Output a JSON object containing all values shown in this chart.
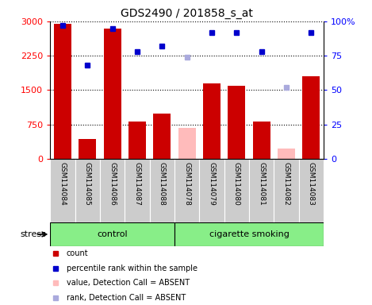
{
  "title": "GDS2490 / 201858_s_at",
  "samples": [
    "GSM114084",
    "GSM114085",
    "GSM114086",
    "GSM114087",
    "GSM114088",
    "GSM114078",
    "GSM114079",
    "GSM114080",
    "GSM114081",
    "GSM114082",
    "GSM114083"
  ],
  "bar_values": [
    2950,
    430,
    2850,
    820,
    980,
    null,
    1650,
    1600,
    820,
    null,
    1800
  ],
  "bar_absent_values": [
    null,
    null,
    null,
    null,
    null,
    680,
    null,
    null,
    null,
    220,
    null
  ],
  "rank_present": [
    97,
    68,
    95,
    78,
    82,
    null,
    92,
    92,
    78,
    null,
    92
  ],
  "rank_absent": [
    null,
    null,
    null,
    null,
    null,
    74,
    null,
    null,
    null,
    52,
    null
  ],
  "bar_color_present": "#cc0000",
  "bar_color_absent": "#ffbbbb",
  "rank_color_present": "#0000cc",
  "rank_color_absent": "#aaaadd",
  "ylim_left": [
    0,
    3000
  ],
  "ylim_right": [
    0,
    100
  ],
  "yticks_left": [
    0,
    750,
    1500,
    2250,
    3000
  ],
  "yticks_right": [
    0,
    25,
    50,
    75,
    100
  ],
  "ytick_labels_right": [
    "0",
    "25",
    "50",
    "75",
    "100%"
  ],
  "control_indices": [
    0,
    1,
    2,
    3,
    4
  ],
  "smoking_indices": [
    5,
    6,
    7,
    8,
    9,
    10
  ],
  "control_label": "control",
  "smoking_label": "cigarette smoking",
  "stress_label": "stress",
  "group_bg_color": "#88ee88",
  "xticklabel_bg": "#cccccc",
  "legend_labels": [
    "count",
    "percentile rank within the sample",
    "value, Detection Call = ABSENT",
    "rank, Detection Call = ABSENT"
  ],
  "legend_colors": [
    "#cc0000",
    "#0000cc",
    "#ffbbbb",
    "#aaaadd"
  ],
  "bar_width": 0.7
}
